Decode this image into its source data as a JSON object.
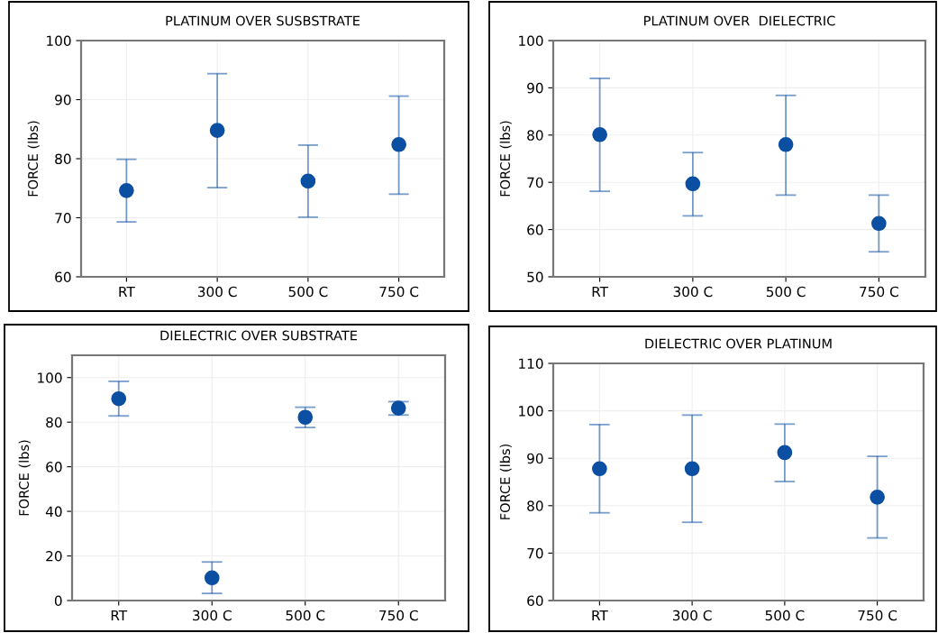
{
  "chart_data": [
    {
      "type": "scatter",
      "title": "PLATINUM OVER SUSBSTRATE",
      "ylabel": "FORCE (lbs)",
      "categories": [
        "RT",
        "300 C",
        "500 C",
        "750 C"
      ],
      "ylim": [
        60,
        100
      ],
      "yticks": [
        60,
        70,
        80,
        90,
        100
      ],
      "grid": true,
      "marker": "circle",
      "color": "#0b4fa3",
      "values": [
        74.6,
        84.8,
        76.2,
        82.4
      ],
      "errors": [
        [
          69.3,
          79.9
        ],
        [
          75.1,
          94.4
        ],
        [
          70.1,
          82.3
        ],
        [
          74.0,
          90.6
        ]
      ]
    },
    {
      "type": "scatter",
      "title": "PLATINUM OVER  DIELECTRIC",
      "ylabel": "FORCE (lbs)",
      "categories": [
        "RT",
        "300 C",
        "500 C",
        "750 C"
      ],
      "ylim": [
        50,
        100
      ],
      "yticks": [
        50,
        60,
        70,
        80,
        90,
        100
      ],
      "grid": true,
      "marker": "circle",
      "color": "#0b4fa3",
      "values": [
        80.1,
        69.7,
        78.0,
        61.3
      ],
      "errors": [
        [
          68.1,
          92.0
        ],
        [
          62.9,
          76.3
        ],
        [
          67.3,
          88.4
        ],
        [
          55.3,
          67.3
        ]
      ]
    },
    {
      "type": "scatter",
      "title": "DIELECTRIC OVER SUBSTRATE",
      "ylabel": "FORCE (lbs)",
      "categories": [
        "RT",
        "300 C",
        "500 C",
        "750 C"
      ],
      "ylim": [
        0,
        110
      ],
      "yticks": [
        0,
        20,
        40,
        60,
        80,
        100
      ],
      "grid": true,
      "marker": "circle",
      "color": "#0b4fa3",
      "values": [
        90.5,
        10.2,
        82.2,
        86.3
      ],
      "errors": [
        [
          82.8,
          98.3
        ],
        [
          3.2,
          17.3
        ],
        [
          77.6,
          86.7
        ],
        [
          83.2,
          89.2
        ]
      ]
    },
    {
      "type": "scatter",
      "title": "DIELECTRIC OVER PLATINUM",
      "ylabel": "FORCE (lbs)",
      "categories": [
        "RT",
        "300 C",
        "500 C",
        "750 C"
      ],
      "ylim": [
        60,
        110
      ],
      "yticks": [
        60,
        70,
        80,
        90,
        100,
        110
      ],
      "grid": true,
      "marker": "circle",
      "color": "#0b4fa3",
      "values": [
        87.8,
        87.8,
        91.2,
        81.8
      ],
      "errors": [
        [
          78.5,
          97.1
        ],
        [
          76.5,
          99.1
        ],
        [
          85.1,
          97.2
        ],
        [
          73.2,
          90.4
        ]
      ]
    }
  ]
}
